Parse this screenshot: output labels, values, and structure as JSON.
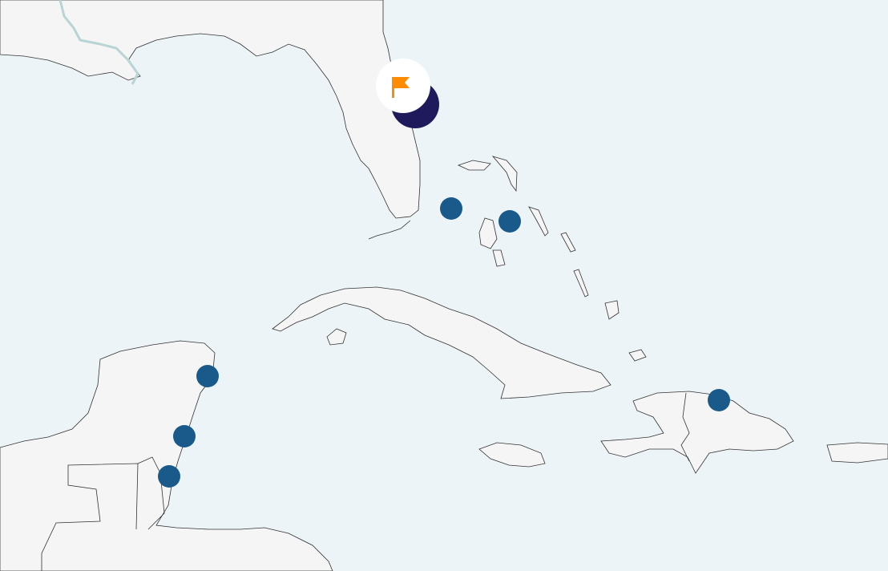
{
  "map": {
    "colors": {
      "water": "#ecf4f8",
      "land": "#f5f5f5",
      "coastline": "#333333",
      "river": "#b8d4d4",
      "marker": "#1a5a8a",
      "selected_marker": "#1e1a5c",
      "flag": "#ff8c00",
      "flag_badge": "#ffffff"
    },
    "markers": [
      {
        "type": "location",
        "icon": "dot-marker"
      },
      {
        "type": "location",
        "icon": "dot-marker"
      },
      {
        "type": "location",
        "icon": "dot-marker"
      },
      {
        "type": "location",
        "icon": "dot-marker"
      },
      {
        "type": "location",
        "icon": "dot-marker"
      },
      {
        "type": "location",
        "icon": "dot-marker"
      }
    ],
    "selected_marker": {
      "icon": "flag-icon"
    }
  }
}
